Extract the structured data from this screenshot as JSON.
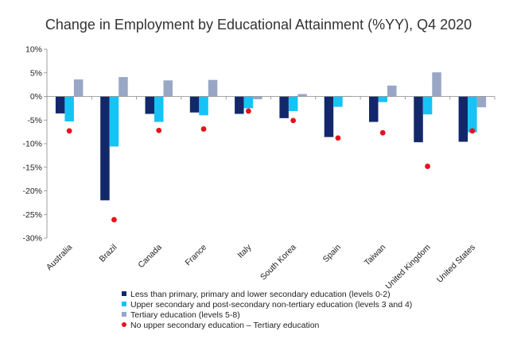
{
  "chart_data": {
    "type": "bar",
    "title": "Change in Employment by Educational Attainment (%YY), Q4 2020",
    "categories": [
      "Australia",
      "Brazil",
      "Canada",
      "France",
      "Italy",
      "South Korea",
      "Spain",
      "Taiwan",
      "United Kingdom",
      "United States"
    ],
    "y_tick_labels": [
      "10%",
      "5%",
      "0%",
      "-5%",
      "-10%",
      "-15%",
      "-20%",
      "-25%",
      "-30%"
    ],
    "ylim": [
      -30,
      10
    ],
    "ylabel": "",
    "xlabel": "",
    "grid": false,
    "legend_position": "bottom",
    "series": [
      {
        "name": "Less than primary, primary and lower secondary education (levels 0-2)",
        "type": "bar",
        "color": "#13286b",
        "values": [
          -3.6,
          -22.0,
          -3.7,
          -3.4,
          -3.7,
          -4.6,
          -8.6,
          -5.4,
          -9.7,
          -9.6
        ]
      },
      {
        "name": "Upper secondary and post-secondary non-tertiary education (levels 3 and 4)",
        "type": "bar",
        "color": "#16c3f5",
        "values": [
          -5.3,
          -10.6,
          -5.4,
          -4.0,
          -2.5,
          -3.1,
          -2.2,
          -1.2,
          -3.8,
          -7.6
        ]
      },
      {
        "name": "Tertiary education (levels 5-8)",
        "type": "bar",
        "color": "#9aa6c6",
        "values": [
          3.6,
          4.1,
          3.4,
          3.5,
          -0.6,
          0.5,
          0.1,
          2.3,
          5.1,
          -2.3
        ]
      },
      {
        "name": "No upper secondary education – Tertiary education",
        "type": "scatter",
        "color": "#e4141b",
        "values": [
          -7.3,
          -26.1,
          -7.2,
          -6.9,
          -3.1,
          -5.1,
          -8.8,
          -7.7,
          -14.8,
          -7.3
        ]
      }
    ]
  }
}
